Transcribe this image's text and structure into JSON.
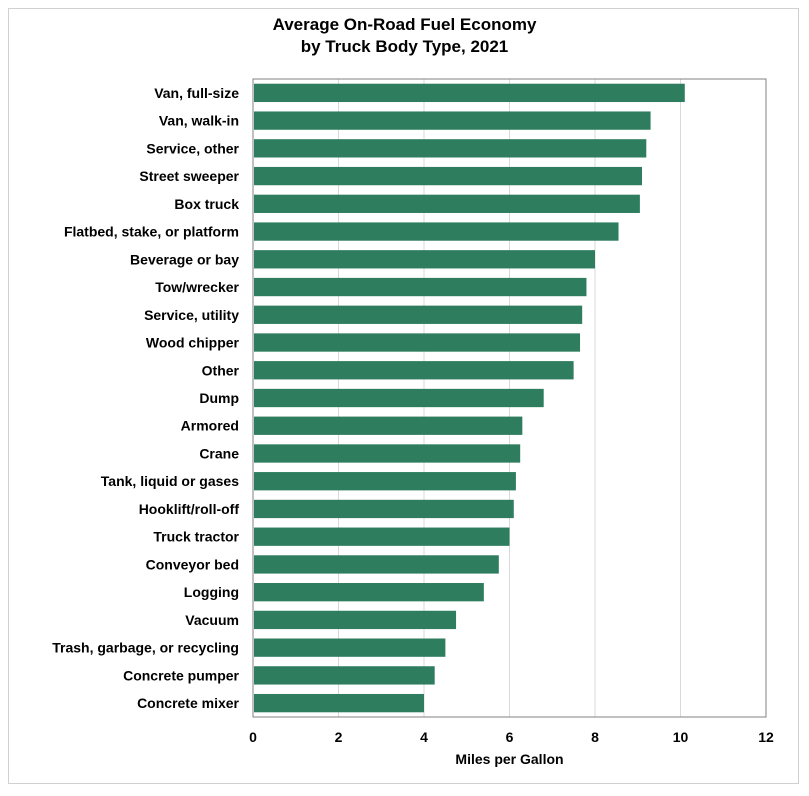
{
  "chart_data": {
    "type": "bar",
    "orientation": "horizontal",
    "title": [
      "Average On-Road Fuel Economy",
      "by Truck Body Type, 2021"
    ],
    "xlabel": "Miles per Gallon",
    "xlim": [
      0,
      12
    ],
    "xticks": [
      0,
      2,
      4,
      6,
      8,
      10,
      12
    ],
    "grid": "vertical",
    "bar_color": "#2e7d5e",
    "categories": [
      "Van, full-size",
      "Van, walk-in",
      "Service, other",
      "Street sweeper",
      "Box truck",
      "Flatbed, stake, or platform",
      "Beverage or bay",
      "Tow/wrecker",
      "Service, utility",
      "Wood chipper",
      "Other",
      "Dump",
      "Armored",
      "Crane",
      "Tank, liquid or gases",
      "Hooklift/roll-off",
      "Truck tractor",
      "Conveyor bed",
      "Logging",
      "Vacuum",
      "Trash, garbage, or recycling",
      "Concrete pumper",
      "Concrete mixer"
    ],
    "values": [
      10.1,
      9.3,
      9.2,
      9.1,
      9.05,
      8.55,
      8.0,
      7.8,
      7.7,
      7.65,
      7.5,
      6.8,
      6.3,
      6.25,
      6.15,
      6.1,
      6.0,
      5.75,
      5.4,
      4.75,
      4.5,
      4.25,
      4.0
    ]
  }
}
